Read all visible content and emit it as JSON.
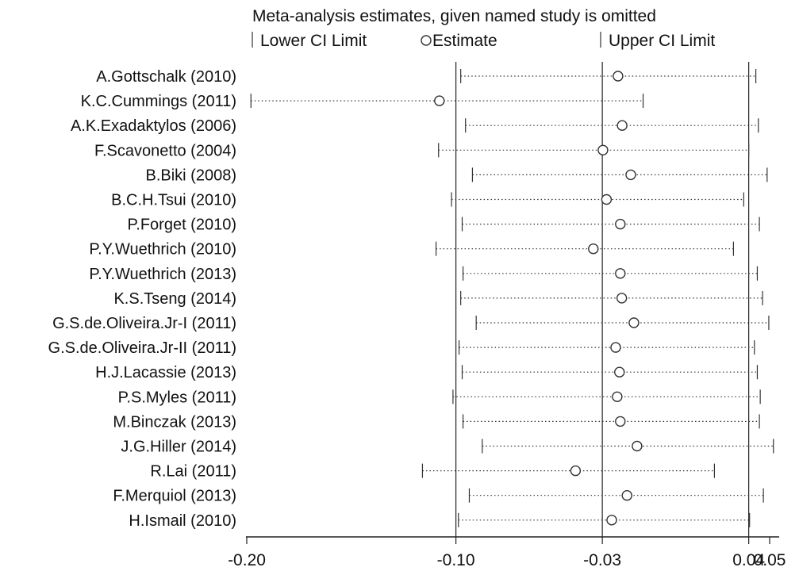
{
  "chart_data": {
    "type": "forest",
    "title": "Meta-analysis estimates, given named study is omitted",
    "legend": {
      "lower": "Lower CI Limit",
      "estimate": "Estimate",
      "upper": "Upper CI Limit",
      "placement": "top"
    },
    "xlim": [
      -0.2,
      0.05
    ],
    "x_ticks": [
      {
        "value": -0.2,
        "label": "-0.20"
      },
      {
        "value": -0.1,
        "label": "-0.10"
      },
      {
        "value": -0.03,
        "label": "-0.03"
      },
      {
        "value": 0.04,
        "label": "0.04"
      },
      {
        "value": 0.05,
        "label": "0.05"
      }
    ],
    "reference_lines": [
      -0.1,
      -0.03,
      0.04
    ],
    "studies": [
      {
        "label": "A.Gottschalk (2010)",
        "lower": -0.0977,
        "estimate": -0.0225,
        "upper": 0.0434
      },
      {
        "label": "K.C.Cummings (2011)",
        "lower": -0.198,
        "estimate": -0.1079,
        "upper": -0.0105
      },
      {
        "label": "A.K.Exadaktylos (2006)",
        "lower": -0.0954,
        "estimate": -0.0205,
        "upper": 0.0446
      },
      {
        "label": "F.Scavonetto (2004)",
        "lower": -0.1083,
        "estimate": -0.0297,
        "upper": 0.04
      },
      {
        "label": "B.Biki (2008)",
        "lower": -0.0921,
        "estimate": -0.0164,
        "upper": 0.0488
      },
      {
        "label": "B.C.H.Tsui (2010)",
        "lower": -0.1021,
        "estimate": -0.028,
        "upper": 0.0376
      },
      {
        "label": "P.Forget (2010)",
        "lower": -0.097,
        "estimate": -0.0214,
        "upper": 0.0451
      },
      {
        "label": "P.Y.Wuethrich (2010)",
        "lower": -0.1095,
        "estimate": -0.0343,
        "upper": 0.0327
      },
      {
        "label": "P.Y.Wuethrich (2013)",
        "lower": -0.0966,
        "estimate": -0.0214,
        "upper": 0.0441
      },
      {
        "label": "K.S.Tseng (2014)",
        "lower": -0.0977,
        "estimate": -0.0207,
        "upper": 0.0466
      },
      {
        "label": "G.S.de.Oliveira.Jr-I (2011)",
        "lower": -0.0903,
        "estimate": -0.0149,
        "upper": 0.0496
      },
      {
        "label": "G.S.de.Oliveira.Jr-II (2011)",
        "lower": -0.0985,
        "estimate": -0.0236,
        "upper": 0.0427
      },
      {
        "label": "H.J.Lacassie (2013)",
        "lower": -0.097,
        "estimate": -0.0218,
        "upper": 0.0441
      },
      {
        "label": "P.S.Myles (2011)",
        "lower": -0.1014,
        "estimate": -0.0229,
        "upper": 0.0455
      },
      {
        "label": "M.Binczak (2013)",
        "lower": -0.0966,
        "estimate": -0.0214,
        "upper": 0.0451
      },
      {
        "label": "J.G.Hiller (2014)",
        "lower": -0.0874,
        "estimate": -0.0134,
        "upper": 0.0518
      },
      {
        "label": "R.Lai (2011)",
        "lower": -0.116,
        "estimate": -0.0428,
        "upper": 0.0236
      },
      {
        "label": "F.Merquiol (2013)",
        "lower": -0.0936,
        "estimate": -0.0182,
        "upper": 0.047
      },
      {
        "label": "H.Ismail (2010)",
        "lower": -0.0988,
        "estimate": -0.0255,
        "upper": 0.0404
      }
    ]
  }
}
